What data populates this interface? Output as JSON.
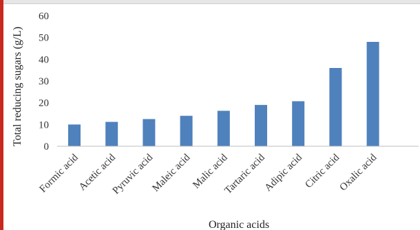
{
  "chart_data": {
    "type": "bar",
    "title": "",
    "xlabel": "Organic acids",
    "ylabel": "Total reducing sugars (g/L)",
    "categories": [
      "Formic acid",
      "Acetic acid",
      "Pyruvic acid",
      "Maleic acid",
      "Malic acid",
      "Tartaric acid",
      "Adipic acid",
      "Citric acid",
      "Oxalic acid"
    ],
    "values": [
      10,
      11.2,
      12.5,
      14,
      16.3,
      19,
      20.7,
      36,
      48
    ],
    "ylim": [
      0,
      60
    ],
    "yticks": [
      "0",
      "10",
      "20",
      "30",
      "40",
      "50",
      "60"
    ],
    "grid": false,
    "legend": false,
    "bar_color": "#4f81bd"
  }
}
